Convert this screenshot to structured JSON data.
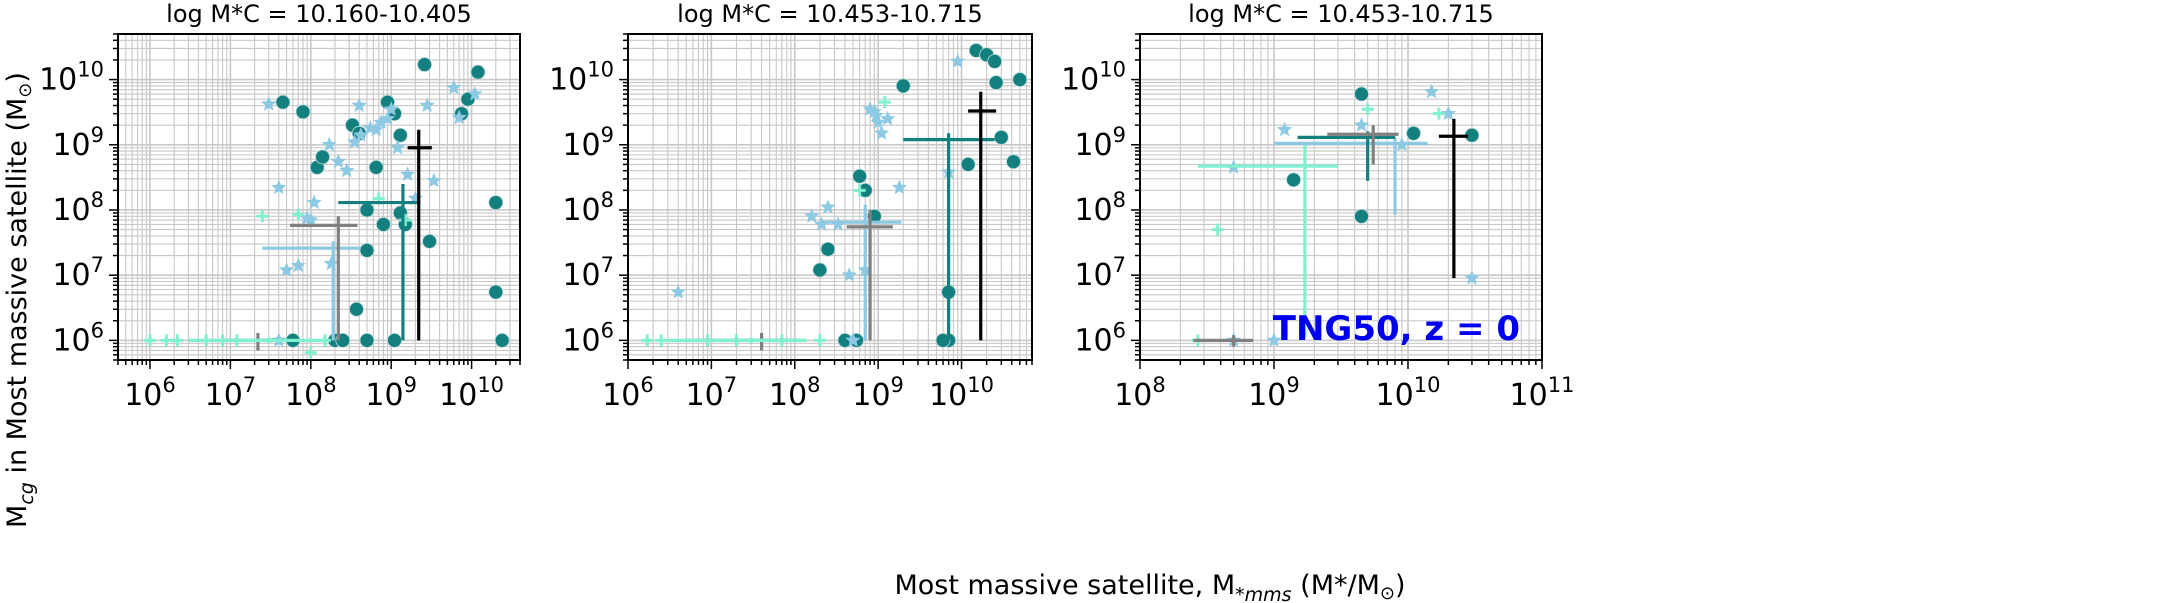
{
  "figure": {
    "xlabel": "Most massive satellite, M",
    "xlabel_sub": "*mms",
    "xlabel_units": "(M*/M",
    "ylabel_main": "M",
    "ylabel_sub": "cg",
    "ylabel_rest": " in Most massive satellite (M"
  },
  "colors": {
    "teal": "#137f7f",
    "lightblue": "#8ec9e3",
    "aquamarine": "#7ff0d0",
    "gray": "#808080",
    "black": "#000000",
    "grid": "#c8c8c8",
    "annotation": "#0000ee"
  },
  "chart_data": [
    {
      "type": "scatter",
      "title": "log M*C = 10.160-10.405",
      "xscale": "log",
      "yscale": "log",
      "xlim": [
        400000,
        40000000000
      ],
      "ylim": [
        500000,
        50000000000
      ],
      "xticks": [
        "10^6",
        "10^7",
        "10^8",
        "10^9",
        "10^10"
      ],
      "yticks": [
        "10^6",
        "10^7",
        "10^8",
        "10^9",
        "10^10"
      ],
      "grid": true,
      "series": [
        {
          "marker": "circle",
          "color": "teal",
          "points": [
            [
              45000000,
              4500000000
            ],
            [
              80000000,
              3200000000
            ],
            [
              120000000,
              450000000
            ],
            [
              140000000,
              650000000
            ],
            [
              330000000,
              2000000000
            ],
            [
              400000000,
              1500000000
            ],
            [
              650000000,
              450000000
            ],
            [
              900000000,
              4500000000
            ],
            [
              1100000000,
              3000000000
            ],
            [
              1300000000,
              1400000000
            ],
            [
              2600000000,
              17000000000
            ],
            [
              7500000000,
              3000000000
            ],
            [
              9000000000,
              5000000000
            ],
            [
              12000000000,
              13000000000
            ],
            [
              20000000000,
              130000000
            ],
            [
              20000000000,
              5500000
            ],
            [
              24000000000,
              1000000
            ],
            [
              500000000,
              100000000
            ],
            [
              800000000,
              60000000
            ],
            [
              500000000,
              24000000
            ],
            [
              370000000,
              3000000
            ],
            [
              1300000000,
              90000000
            ],
            [
              1500000000,
              60000000
            ],
            [
              3000000000,
              33000000
            ],
            [
              60000000,
              1000000
            ],
            [
              200000000,
              1000000
            ],
            [
              250000000,
              1000000
            ],
            [
              500000000,
              1000000
            ],
            [
              1100000000,
              1000000
            ]
          ]
        },
        {
          "marker": "star",
          "color": "lightblue",
          "points": [
            [
              30000000,
              4200000000
            ],
            [
              40000000,
              220000000
            ],
            [
              50000000,
              12000000
            ],
            [
              70000000,
              14000000
            ],
            [
              90000000,
              75000000
            ],
            [
              100000000,
              70000000
            ],
            [
              110000000,
              130000000
            ],
            [
              170000000,
              1000000000
            ],
            [
              180000000,
              15000000
            ],
            [
              220000000,
              550000000
            ],
            [
              280000000,
              400000000
            ],
            [
              350000000,
              1100000000
            ],
            [
              400000000,
              4000000000
            ],
            [
              420000000,
              1400000000
            ],
            [
              550000000,
              1800000000
            ],
            [
              650000000,
              1700000000
            ],
            [
              750000000,
              2200000000
            ],
            [
              900000000,
              2500000000
            ],
            [
              1000000000,
              3500000000
            ],
            [
              1200000000,
              900000000
            ],
            [
              1600000000,
              350000000
            ],
            [
              2000000000,
              150000000
            ],
            [
              2800000000,
              4000000000
            ],
            [
              3400000000,
              280000000
            ],
            [
              6000000000,
              7500000000
            ],
            [
              7000000000,
              2600000000
            ],
            [
              11000000000,
              6000000000
            ],
            [
              40000000,
              1000000
            ]
          ]
        },
        {
          "marker": "plus",
          "color": "aquamarine",
          "points": [
            [
              1000000,
              1000000
            ],
            [
              1600000,
              1000000
            ],
            [
              2200000,
              1000000
            ],
            [
              5000000,
              1000000
            ],
            [
              8000000,
              1000000
            ],
            [
              12000000,
              1000000
            ],
            [
              25000000,
              80000000
            ],
            [
              70000000,
              85000000
            ],
            [
              150000000,
              1000000
            ],
            [
              700000000,
              150000000
            ],
            [
              1500000000,
              70000000
            ],
            [
              100000000,
              650000
            ]
          ]
        }
      ],
      "errorbars": [
        {
          "color": "lightblue",
          "x": 190000000,
          "y": 26000000,
          "xerr": [
            25000000,
            420000000
          ],
          "yerr": [
            1000000,
            33000000
          ]
        },
        {
          "color": "gray",
          "x": 220000000,
          "y": 58000000,
          "xerr": [
            55000000,
            380000000
          ],
          "yerr": [
            1000000,
            80000000
          ]
        },
        {
          "color": "teal",
          "x": 1400000000,
          "y": 130000000,
          "xerr": [
            220000000,
            2300000000
          ],
          "yerr": [
            1000000,
            250000000
          ]
        },
        {
          "color": "black",
          "x": 2200000000,
          "y": 900000000,
          "xerr": [
            1600000000,
            3200000000
          ],
          "yerr": [
            1000000,
            1700000000
          ]
        },
        {
          "color": "gray",
          "x": 22000000,
          "y": 1000000,
          "xerr": [
            8000000,
            50000000
          ],
          "yerr": [
            700000,
            1300000
          ]
        },
        {
          "color": "aquamarine",
          "x": 30000000,
          "y": 1000000,
          "xerr": [
            3000000,
            150000000
          ],
          "yerr": [
            900000,
            1100000
          ]
        }
      ]
    },
    {
      "type": "scatter",
      "title": "log M*C = 10.453-10.715",
      "xscale": "log",
      "yscale": "log",
      "xlim": [
        1000000,
        70000000000
      ],
      "ylim": [
        500000,
        50000000000
      ],
      "xticks": [
        "10^7",
        "10^8",
        "10^9",
        "10^10"
      ],
      "yticks": [
        "10^6",
        "10^7",
        "10^8",
        "10^9",
        "10^10"
      ],
      "grid": true,
      "series": [
        {
          "marker": "circle",
          "color": "teal",
          "points": [
            [
              200000000,
              12000000
            ],
            [
              250000000,
              25000000
            ],
            [
              400000000,
              1000000
            ],
            [
              550000000,
              1000000
            ],
            [
              600000000,
              330000000
            ],
            [
              700000000,
              200000000
            ],
            [
              900000000,
              80000000
            ],
            [
              7000000000,
              5500000
            ],
            [
              7000000000,
              1000000
            ],
            [
              12000000000,
              500000000
            ],
            [
              15000000000,
              28000000000
            ],
            [
              20000000000,
              24000000000
            ],
            [
              25000000000,
              19000000000
            ],
            [
              26000000000,
              9000000000
            ],
            [
              30000000000,
              1300000000
            ],
            [
              42000000000,
              550000000
            ],
            [
              50000000000,
              10000000000
            ],
            [
              2000000000,
              8000000000
            ],
            [
              6000000000,
              1000000
            ]
          ]
        },
        {
          "marker": "star",
          "color": "lightblue",
          "points": [
            [
              4000000,
              5500000
            ],
            [
              160000000,
              80000000
            ],
            [
              210000000,
              60000000
            ],
            [
              250000000,
              110000000
            ],
            [
              330000000,
              60000000
            ],
            [
              450000000,
              10000000
            ],
            [
              700000000,
              12000000
            ],
            [
              800000000,
              3500000000
            ],
            [
              900000000,
              3200000000
            ],
            [
              950000000,
              2800000000
            ],
            [
              1000000000,
              2200000000
            ],
            [
              1100000000,
              1500000000
            ],
            [
              1300000000,
              2500000000
            ],
            [
              1800000000,
              220000000
            ],
            [
              7000000000,
              380000000
            ],
            [
              9000000000,
              19000000000
            ],
            [
              500000000,
              1000000
            ]
          ]
        },
        {
          "marker": "plus",
          "color": "aquamarine",
          "points": [
            [
              1700000,
              1000000
            ],
            [
              2500000,
              1000000
            ],
            [
              9000000,
              1000000
            ],
            [
              20000000,
              1000000
            ],
            [
              40000000,
              1000000
            ],
            [
              70000000,
              1000000
            ],
            [
              200000000,
              1000000
            ],
            [
              1200000000,
              4500000000
            ],
            [
              600000000,
              200000000
            ]
          ]
        }
      ],
      "errorbars": [
        {
          "color": "lightblue",
          "x": 700000000,
          "y": 65000000,
          "xerr": [
            200000000,
            1900000000
          ],
          "yerr": [
            1000000,
            120000000
          ]
        },
        {
          "color": "gray",
          "x": 800000000,
          "y": 55000000,
          "xerr": [
            420000000,
            1500000000
          ],
          "yerr": [
            1000000,
            100000000
          ]
        },
        {
          "color": "teal",
          "x": 7000000000,
          "y": 1200000000,
          "xerr": [
            2000000000,
            25000000000
          ],
          "yerr": [
            1000000,
            1500000000
          ]
        },
        {
          "color": "black",
          "x": 17000000000,
          "y": 3300000000,
          "xerr": [
            12000000000,
            26000000000
          ],
          "yerr": [
            1000000,
            6500000000
          ]
        },
        {
          "color": "gray",
          "x": 40000000,
          "y": 1000000,
          "xerr": [
            5000000,
            120000000
          ],
          "yerr": [
            700000,
            1300000
          ]
        },
        {
          "color": "aquamarine",
          "x": 30000000,
          "y": 1000000,
          "xerr": [
            3000000,
            140000000
          ],
          "yerr": [
            900000,
            1100000
          ]
        }
      ]
    },
    {
      "type": "scatter",
      "title": "log M*C = 10.453-10.715",
      "xscale": "log",
      "yscale": "log",
      "xlim": [
        100000000,
        100000000000
      ],
      "ylim": [
        500000,
        50000000000
      ],
      "xticks": [
        "10^8",
        "10^9",
        "10^10",
        "10^11"
      ],
      "yticks": [
        "10^6",
        "10^7",
        "10^8",
        "10^9",
        "10^10"
      ],
      "grid": true,
      "annotation": "TNG50, z = 0",
      "series": [
        {
          "marker": "circle",
          "color": "teal",
          "points": [
            [
              1400000000,
              290000000
            ],
            [
              4500000000,
              6000000000
            ],
            [
              4500000000,
              80000000
            ],
            [
              11000000000,
              1500000000
            ],
            [
              30000000000,
              1400000000
            ]
          ]
        },
        {
          "marker": "star",
          "color": "lightblue",
          "points": [
            [
              500000000,
              1000000
            ],
            [
              1000000000,
              1000000
            ],
            [
              1200000000,
              1700000000
            ],
            [
              4500000000,
              2000000000
            ],
            [
              9000000000,
              1000000000
            ],
            [
              15000000000,
              6500000000
            ],
            [
              20000000000,
              3000000000
            ],
            [
              30000000000,
              9000000
            ],
            [
              500000000,
              450000000
            ]
          ]
        },
        {
          "marker": "plus",
          "color": "aquamarine",
          "points": [
            [
              270000000,
              1000000
            ],
            [
              380000000,
              50000000
            ],
            [
              5000000000,
              3500000000
            ],
            [
              17000000000,
              3000000000
            ]
          ]
        }
      ],
      "errorbars": [
        {
          "color": "aquamarine",
          "x": 1700000000,
          "y": 470000000,
          "xerr": [
            270000000,
            3000000000
          ],
          "yerr": [
            1100000,
            1100000000
          ]
        },
        {
          "color": "lightblue",
          "x": 8000000000,
          "y": 1050000000,
          "xerr": [
            1000000000,
            14000000000
          ],
          "yerr": [
            85000000,
            1300000000
          ]
        },
        {
          "color": "teal",
          "x": 5000000000,
          "y": 1300000000,
          "xerr": [
            1500000000,
            8000000000
          ],
          "yerr": [
            280000000,
            1600000000
          ]
        },
        {
          "color": "gray",
          "x": 5500000000,
          "y": 1450000000,
          "xerr": [
            2500000000,
            8500000000
          ],
          "yerr": [
            500000000,
            2000000000
          ]
        },
        {
          "color": "black",
          "x": 22000000000,
          "y": 1350000000,
          "xerr": [
            17000000000,
            28000000000
          ],
          "yerr": [
            9000000,
            2500000000
          ]
        },
        {
          "color": "gray",
          "x": 500000000,
          "y": 1000000,
          "xerr": [
            250000000,
            700000000
          ],
          "yerr": [
            800000,
            1200000
          ]
        }
      ]
    }
  ]
}
